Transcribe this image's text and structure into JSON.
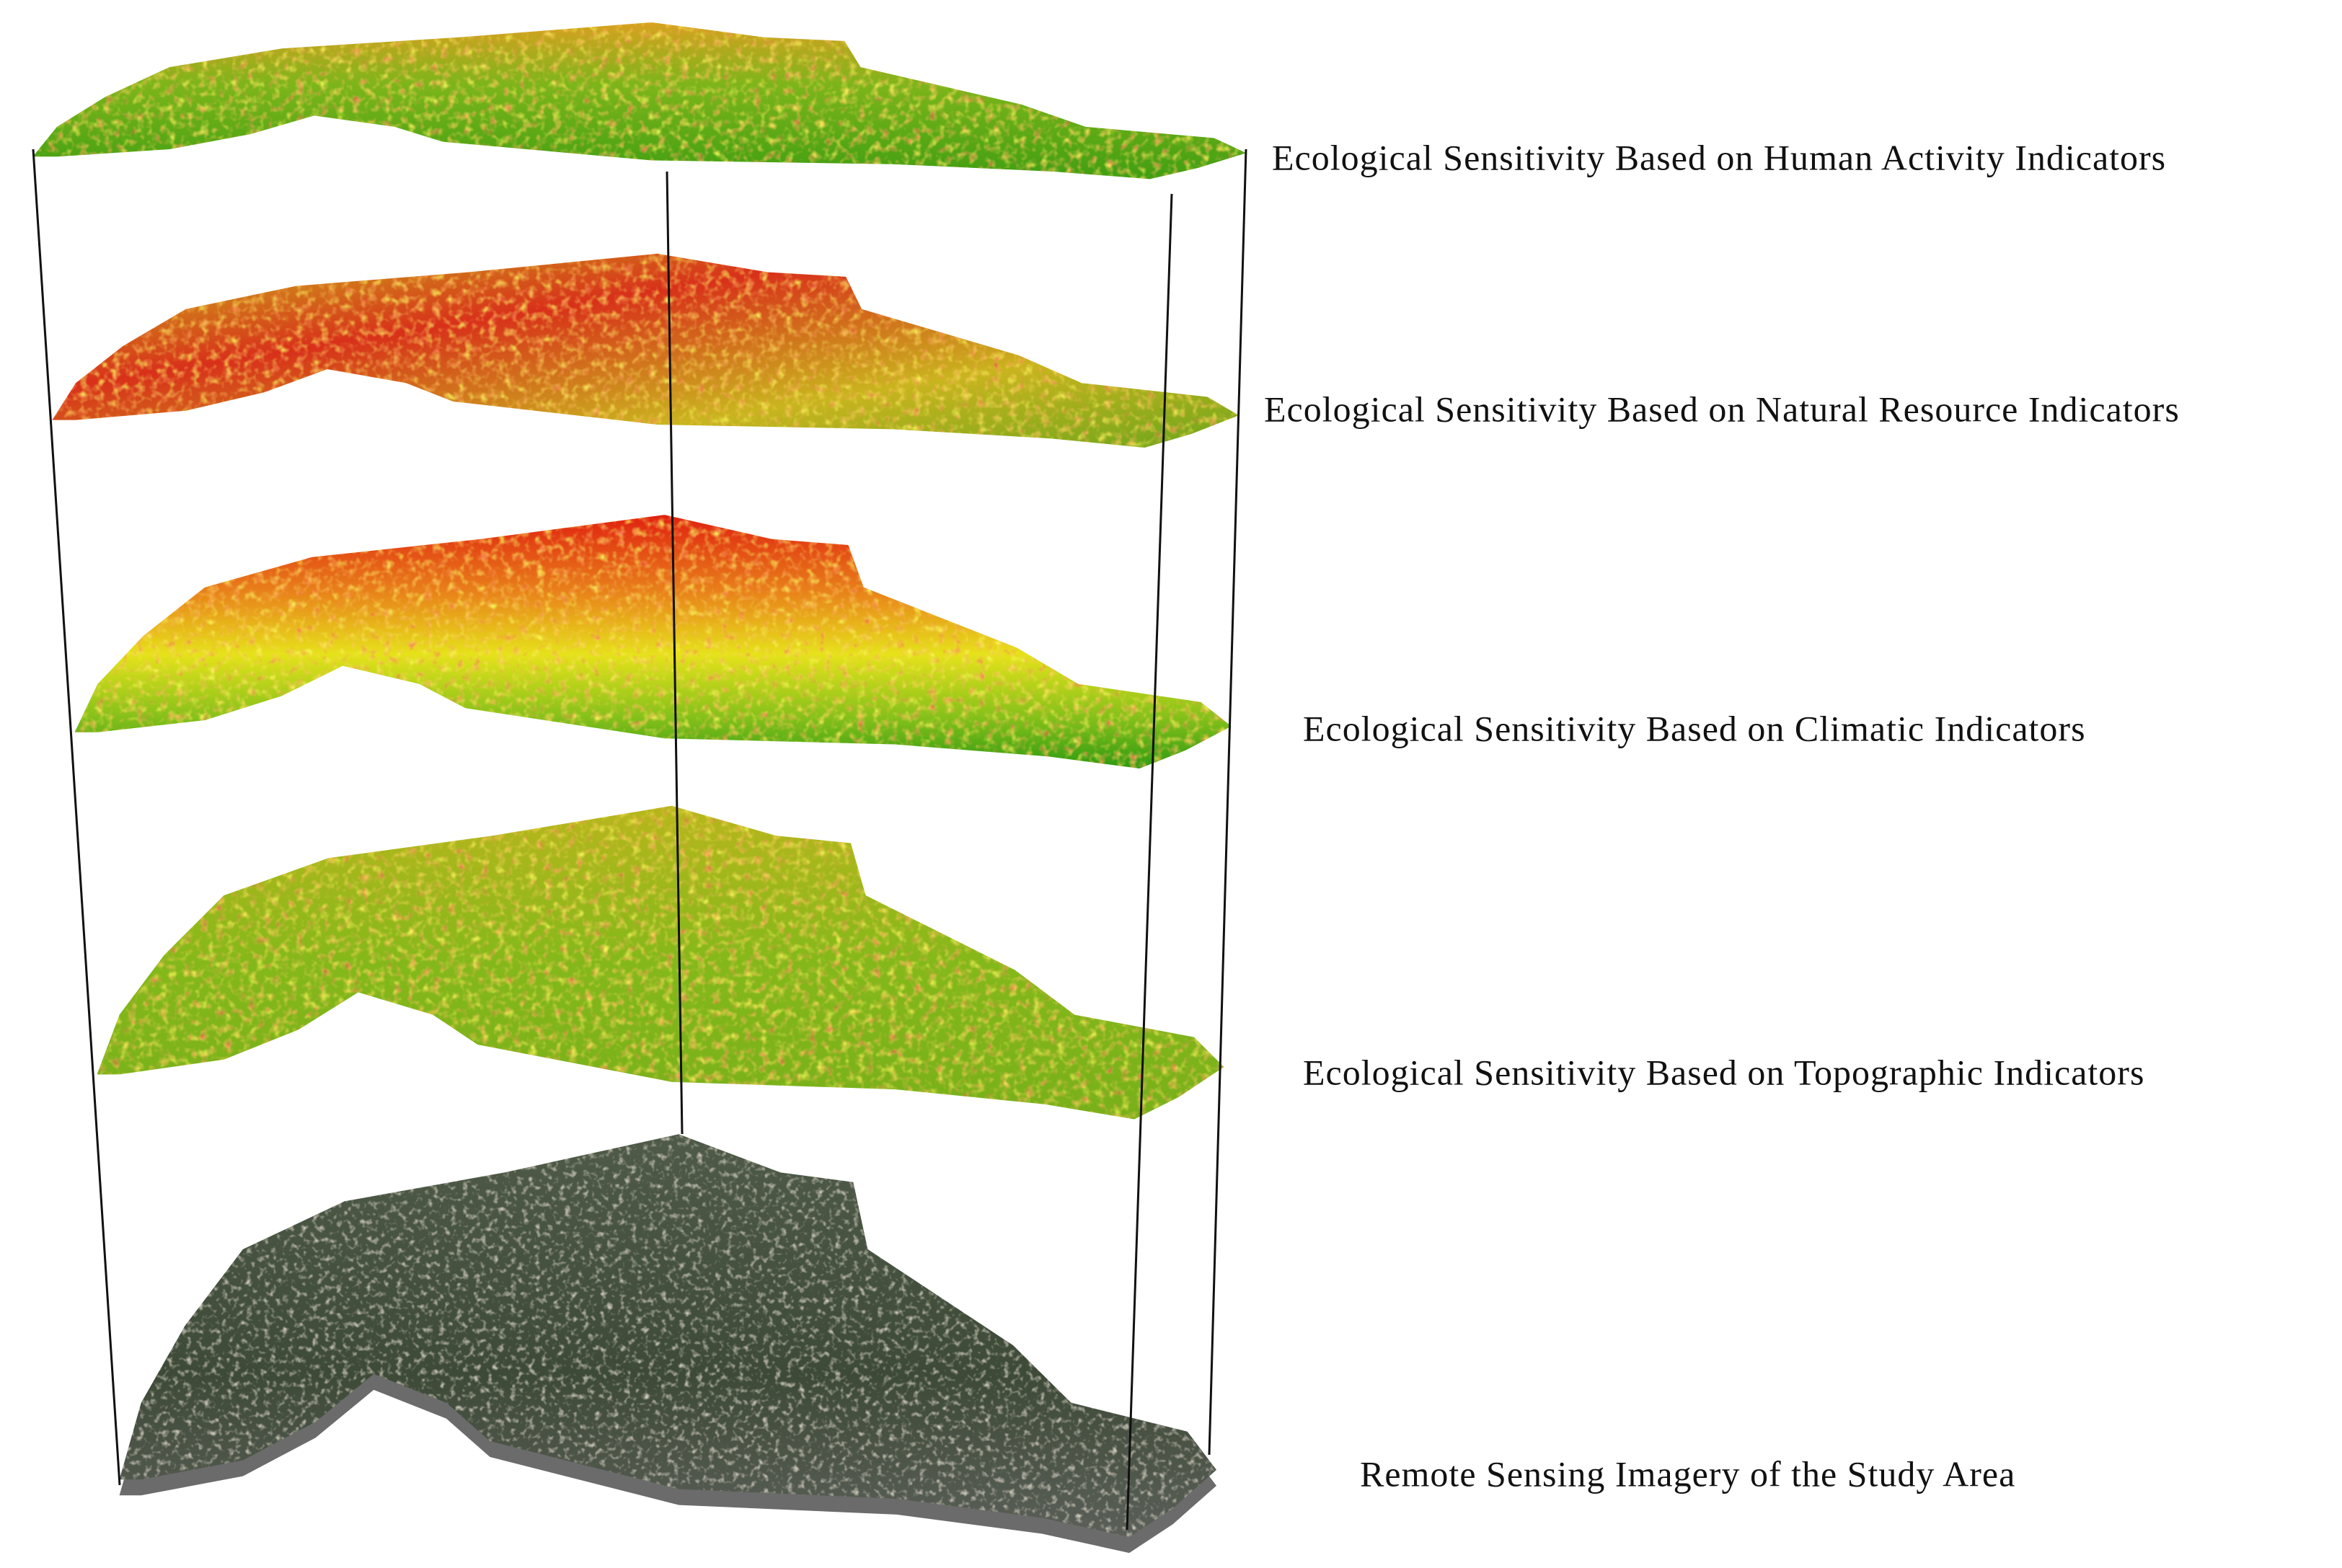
{
  "labels": [
    "Ecological Sensitivity Based on Human Activity Indicators",
    "Ecological Sensitivity Based on Natural Resource Indicators",
    "Ecological Sensitivity Based on Climatic Indicators",
    "Ecological Sensitivity Based on Topographic Indicators",
    "Remote Sensing Imagery of the Study Area"
  ]
}
